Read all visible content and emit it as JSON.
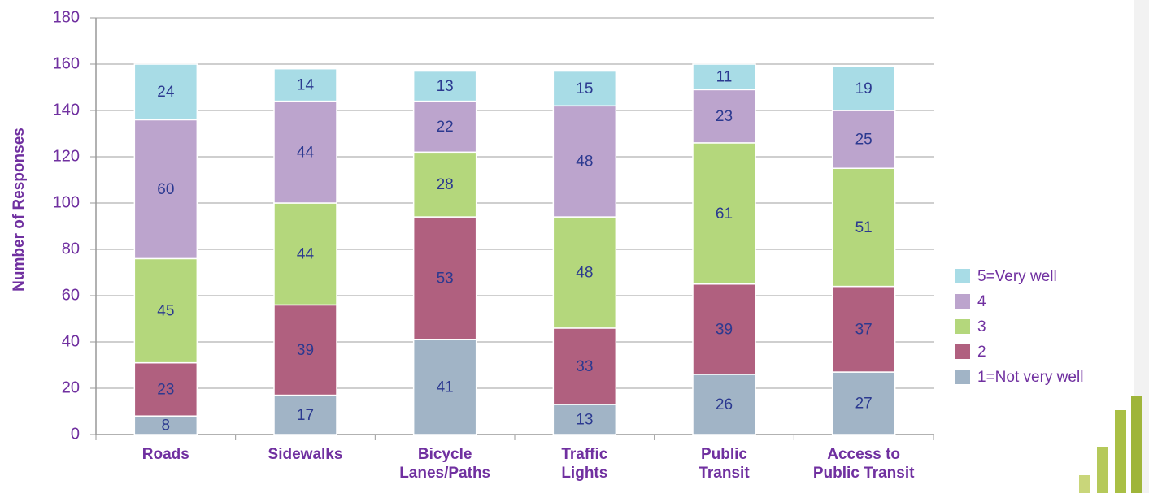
{
  "chart_data": {
    "type": "stacked_bar",
    "y_label": "Number of Responses",
    "categories": [
      "Roads",
      "Sidewalks",
      "Bicycle\nLanes/Paths",
      "Traffic\nLights",
      "Public\nTransit",
      "Access to\nPublic Transit"
    ],
    "series": [
      {
        "name": "1=Not very well",
        "color": "#a1b4c6",
        "values": [
          8,
          17,
          41,
          13,
          26,
          27
        ]
      },
      {
        "name": "2",
        "color": "#b0607f",
        "values": [
          23,
          39,
          53,
          33,
          39,
          37
        ]
      },
      {
        "name": "3",
        "color": "#b4d77c",
        "values": [
          45,
          44,
          28,
          48,
          61,
          51
        ]
      },
      {
        "name": "4",
        "color": "#bca4cd",
        "values": [
          60,
          44,
          22,
          48,
          23,
          25
        ]
      },
      {
        "name": "5=Very well",
        "color": "#a8dce6",
        "values": [
          24,
          14,
          13,
          15,
          11,
          19
        ]
      }
    ],
    "ylim": [
      0,
      180
    ],
    "yticks": [
      0,
      20,
      40,
      60,
      80,
      100,
      120,
      140,
      160,
      180
    ],
    "grid": true,
    "legend": "right"
  }
}
